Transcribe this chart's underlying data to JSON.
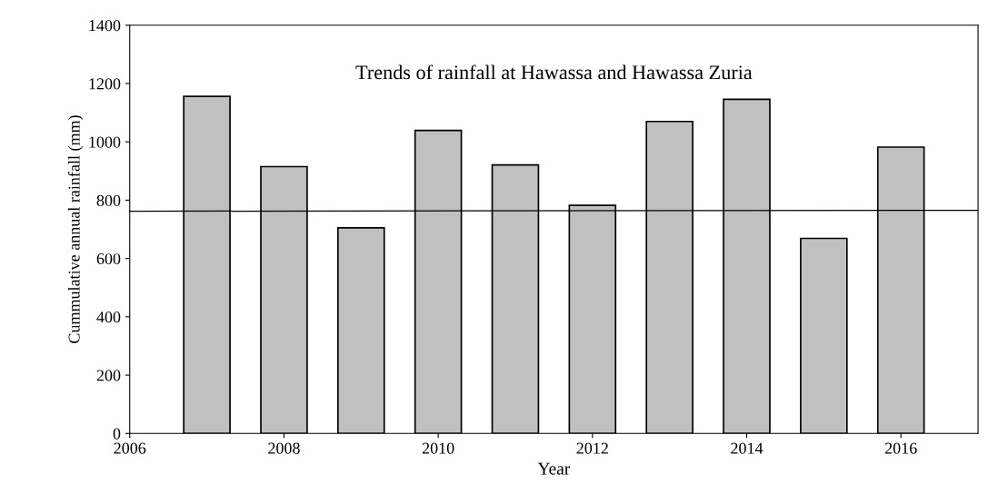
{
  "chart_data": {
    "type": "bar",
    "title": "Trends of rainfall at Hawassa and Hawassa Zuria",
    "xlabel": "Year",
    "ylabel": "Cummulative annual rainfall (mm)",
    "x": [
      2007,
      2008,
      2009,
      2010,
      2011,
      2012,
      2013,
      2014,
      2015,
      2016
    ],
    "series": [
      {
        "color": "#c0c0c0",
        "values": [
          1156,
          915,
          705,
          1039,
          921,
          782,
          1070,
          1146,
          669,
          982
        ]
      },
      {
        "type": "line",
        "color": "#000000",
        "x": [
          2006,
          2017
        ],
        "values": [
          762,
          765
        ]
      }
    ],
    "xlim": [
      2006,
      2017
    ],
    "xticks": [
      2006,
      2008,
      2010,
      2012,
      2014,
      2016
    ],
    "ylim": [
      0,
      1400
    ],
    "yticks": [
      0,
      200,
      400,
      600,
      800,
      1000,
      1200,
      1400
    ],
    "grid": false,
    "legend": false
  }
}
